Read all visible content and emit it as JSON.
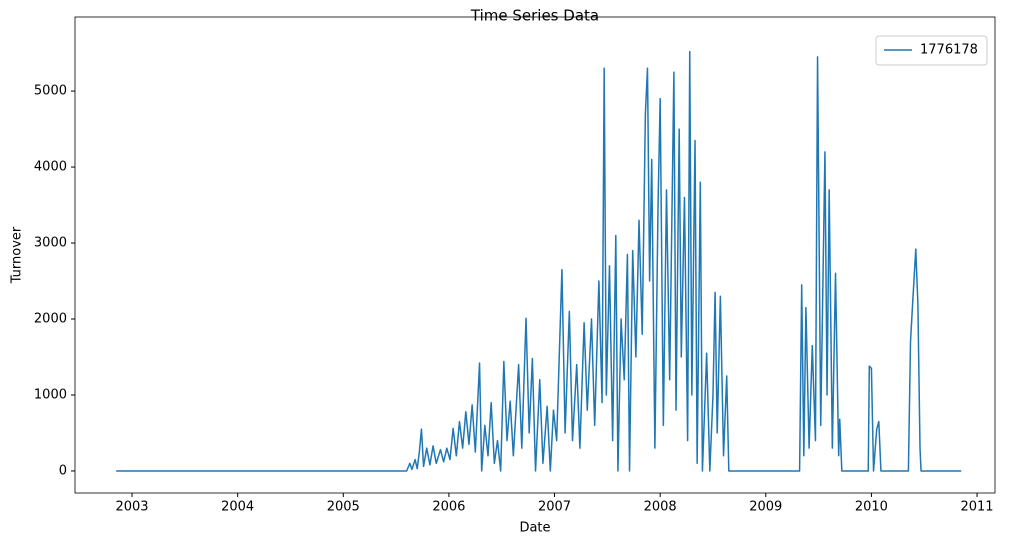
{
  "chart_data": {
    "type": "line",
    "title": "Time Series Data",
    "xlabel": "Date",
    "ylabel": "Turnover",
    "x": [
      2002.85,
      2005.6,
      2005.63,
      2005.65,
      2005.68,
      2005.7,
      2005.72,
      2005.74,
      2005.76,
      2005.79,
      2005.82,
      2005.85,
      2005.88,
      2005.92,
      2005.95,
      2005.98,
      2006.01,
      2006.04,
      2006.07,
      2006.1,
      2006.13,
      2006.16,
      2006.19,
      2006.22,
      2006.25,
      2006.29,
      2006.31,
      2006.34,
      2006.37,
      2006.4,
      2006.43,
      2006.46,
      2006.49,
      2006.52,
      2006.55,
      2006.58,
      2006.61,
      2006.66,
      2006.69,
      2006.73,
      2006.76,
      2006.79,
      2006.82,
      2006.86,
      2006.89,
      2006.93,
      2006.96,
      2006.99,
      2007.02,
      2007.07,
      2007.1,
      2007.14,
      2007.17,
      2007.21,
      2007.24,
      2007.28,
      2007.31,
      2007.35,
      2007.38,
      2007.42,
      2007.45,
      2007.47,
      2007.49,
      2007.52,
      2007.55,
      2007.58,
      2007.6,
      2007.63,
      2007.66,
      2007.69,
      2007.71,
      2007.74,
      2007.77,
      2007.8,
      2007.83,
      2007.86,
      2007.88,
      2007.9,
      2007.92,
      2007.95,
      2007.98,
      2008.0,
      2008.03,
      2008.06,
      2008.09,
      2008.13,
      2008.15,
      2008.18,
      2008.2,
      2008.23,
      2008.26,
      2008.28,
      2008.3,
      2008.33,
      2008.35,
      2008.38,
      2008.4,
      2008.44,
      2008.47,
      2008.5,
      2008.52,
      2008.54,
      2008.57,
      2008.6,
      2008.63,
      2008.65,
      2009.32,
      2009.34,
      2009.36,
      2009.38,
      2009.41,
      2009.44,
      2009.47,
      2009.49,
      2009.52,
      2009.56,
      2009.58,
      2009.6,
      2009.63,
      2009.66,
      2009.69,
      2009.7,
      2009.72,
      2009.97,
      2009.98,
      2010.0,
      2010.02,
      2010.05,
      2010.07,
      2010.09,
      2010.35,
      2010.37,
      2010.39,
      2010.42,
      2010.44,
      2010.46,
      2010.47,
      2010.85
    ],
    "series": [
      {
        "name": "1776178",
        "color": "#1f77b4",
        "values": [
          0,
          0,
          100,
          20,
          150,
          30,
          250,
          550,
          60,
          300,
          80,
          330,
          100,
          280,
          120,
          300,
          150,
          560,
          200,
          650,
          300,
          780,
          350,
          870,
          250,
          1420,
          0,
          600,
          200,
          900,
          100,
          400,
          0,
          1440,
          400,
          920,
          200,
          1400,
          300,
          2010,
          500,
          1480,
          0,
          1200,
          100,
          850,
          0,
          800,
          400,
          2650,
          500,
          2100,
          400,
          1400,
          300,
          1950,
          800,
          2000,
          600,
          2500,
          900,
          5300,
          1000,
          2700,
          400,
          3100,
          0,
          2000,
          1200,
          2850,
          0,
          2900,
          1500,
          3300,
          1800,
          4700,
          5300,
          2500,
          4100,
          300,
          3500,
          4900,
          600,
          3700,
          1200,
          5250,
          800,
          4500,
          1500,
          3600,
          400,
          5520,
          1000,
          4350,
          100,
          3800,
          0,
          1550,
          0,
          1000,
          2350,
          500,
          2300,
          200,
          1250,
          0,
          0,
          2450,
          200,
          2150,
          300,
          1650,
          400,
          5450,
          600,
          4200,
          1000,
          3700,
          300,
          2600,
          200,
          680,
          0,
          0,
          1380,
          1350,
          0,
          550,
          650,
          0,
          0,
          1700,
          2200,
          2920,
          2200,
          300,
          0,
          0
        ]
      }
    ],
    "xlim": [
      2002.46,
      2011.17
    ],
    "ylim": [
      -290,
      5975
    ],
    "xticks": [
      2003,
      2004,
      2005,
      2006,
      2007,
      2008,
      2009,
      2010,
      2011
    ],
    "yticks": [
      0,
      1000,
      2000,
      3000,
      4000,
      5000
    ],
    "legend": "upper right",
    "grid": false
  }
}
